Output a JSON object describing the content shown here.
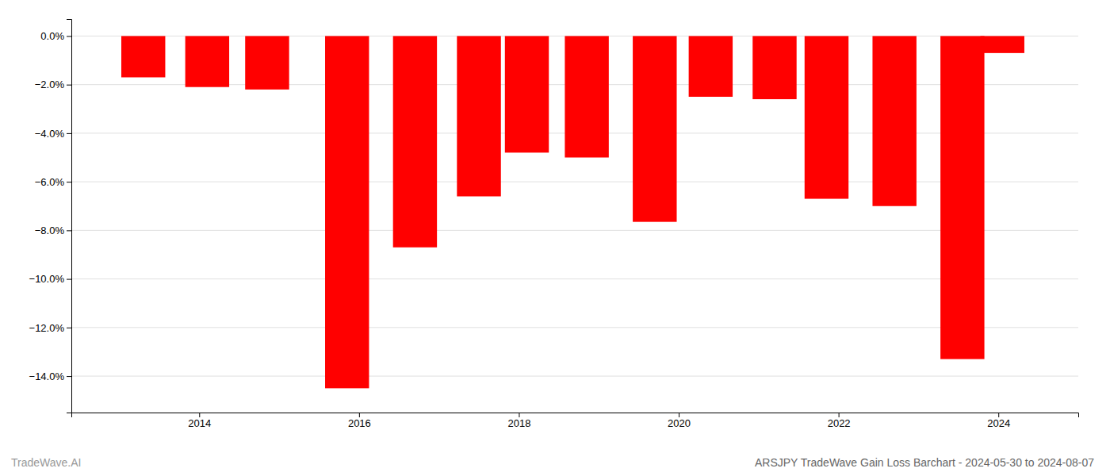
{
  "chart_data": {
    "type": "bar",
    "title": "ARSJPY TradeWave Gain Loss Barchart - 2024-05-30 to 2024-08-07",
    "annotations": [
      "TradeWave.AI"
    ],
    "x": [
      2013.3,
      2014.1,
      2014.85,
      2015.85,
      2016.7,
      2017.5,
      2018.1,
      2018.85,
      2019.7,
      2020.4,
      2021.2,
      2021.85,
      2022.7,
      2023.55,
      2024.05
    ],
    "values": [
      -1.7,
      -2.1,
      -2.2,
      -14.5,
      -8.7,
      -6.6,
      -4.8,
      -5.0,
      -7.65,
      -2.5,
      -2.6,
      -6.7,
      -7.0,
      -13.3,
      -0.7
    ],
    "color": "#ff0000",
    "xlim": [
      2012.4,
      2025.0
    ],
    "xticks": [
      2014,
      2016,
      2018,
      2020,
      2022,
      2024
    ],
    "ylim": [
      -15.5,
      0.7
    ],
    "yticks": [
      {
        "value": 0,
        "label": "0.0%"
      },
      {
        "value": -2,
        "label": "−2.0%"
      },
      {
        "value": -4,
        "label": "−4.0%"
      },
      {
        "value": -6,
        "label": "−6.0%"
      },
      {
        "value": -8,
        "label": "−8.0%"
      },
      {
        "value": -10,
        "label": "−10.0%"
      },
      {
        "value": -12,
        "label": "−12.0%"
      },
      {
        "value": -14,
        "label": "−14.0%"
      }
    ],
    "grid": true
  }
}
